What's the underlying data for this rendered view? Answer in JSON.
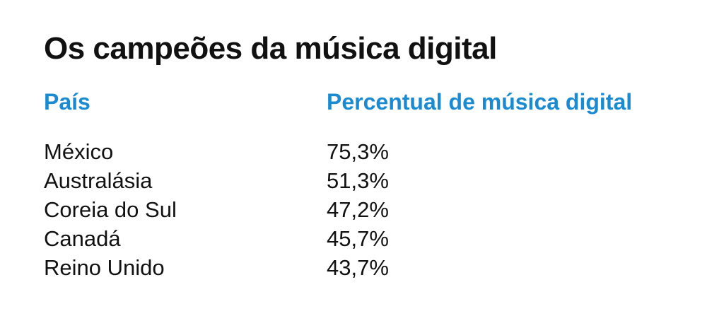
{
  "title": "Os campeões da música digital",
  "columns": {
    "country": "País",
    "value": "Percentual de música digital"
  },
  "rows": [
    {
      "country": "México",
      "value": "75,3%"
    },
    {
      "country": "Australásia",
      "value": "51,3%"
    },
    {
      "country": "Coreia do Sul",
      "value": "47,2%"
    },
    {
      "country": "Canadá",
      "value": "45,7%"
    },
    {
      "country": "Reino Unido",
      "value": "43,7%"
    }
  ],
  "colors": {
    "header": "#1a8bd2",
    "text": "#111111",
    "background": "#ffffff"
  },
  "chart_data": {
    "type": "table",
    "title": "Os campeões da música digital",
    "headers": [
      "País",
      "Percentual de música digital"
    ],
    "categories": [
      "México",
      "Australásia",
      "Coreia do Sul",
      "Canadá",
      "Reino Unido"
    ],
    "values": [
      75.3,
      51.3,
      47.2,
      45.7,
      43.7
    ]
  }
}
